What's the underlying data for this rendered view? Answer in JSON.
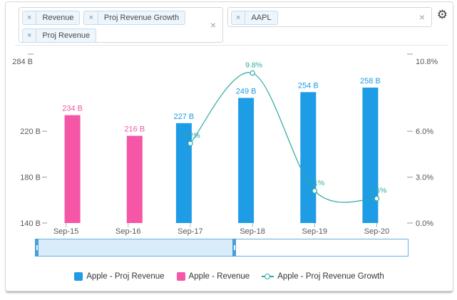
{
  "toolbar": {
    "metric_select": {
      "chips": [
        {
          "label": "Revenue"
        },
        {
          "label": "Proj Revenue Growth"
        },
        {
          "label": "Proj Revenue"
        }
      ],
      "chip_remove_glyph": "×",
      "clear_glyph": "×"
    },
    "ticker_select": {
      "chips": [
        {
          "label": "AAPL"
        }
      ],
      "chip_remove_glyph": "×",
      "clear_glyph": "×"
    },
    "settings_glyph": "⚙"
  },
  "chart_data": {
    "type": "bar",
    "subtype": "grouped bars with spline overlay, dual y-axes",
    "categories": [
      "Sep-15",
      "Sep-16",
      "Sep-17",
      "Sep-18",
      "Sep-19",
      "Sep-20"
    ],
    "series": [
      {
        "name": "Apple - Proj Revenue",
        "type": "bar",
        "axis": "left",
        "color": "#1e9ce6",
        "values": [
          null,
          null,
          227,
          249,
          254,
          258
        ],
        "label_suffix": " B"
      },
      {
        "name": "Apple - Revenue",
        "type": "bar",
        "axis": "left",
        "color": "#f556a5",
        "values": [
          234,
          216,
          null,
          null,
          null,
          null
        ],
        "label_suffix": " B"
      },
      {
        "name": "Apple - Proj Revenue Growth",
        "type": "spline",
        "axis": "right",
        "color": "#2ca9a4",
        "values": [
          null,
          null,
          5.2,
          9.8,
          2.1,
          1.6
        ],
        "label_suffix": "%"
      }
    ],
    "left_axis": {
      "labels": [
        "284 B",
        "220 B",
        "180 B",
        "140 B"
      ],
      "values": [
        284,
        220,
        180,
        140
      ],
      "min": 140,
      "max": 284
    },
    "right_axis": {
      "labels": [
        "10.8%",
        "6.0%",
        "3.0%",
        "0.0%"
      ],
      "values": [
        10.8,
        6.0,
        3.0,
        0.0
      ],
      "min": 0,
      "max": 10.8
    },
    "legend_position": "bottom",
    "grid": false,
    "axis_text_color": "#55595c"
  },
  "navigator": {
    "range_start_fraction": 0.0,
    "range_end_fraction": 0.535
  }
}
